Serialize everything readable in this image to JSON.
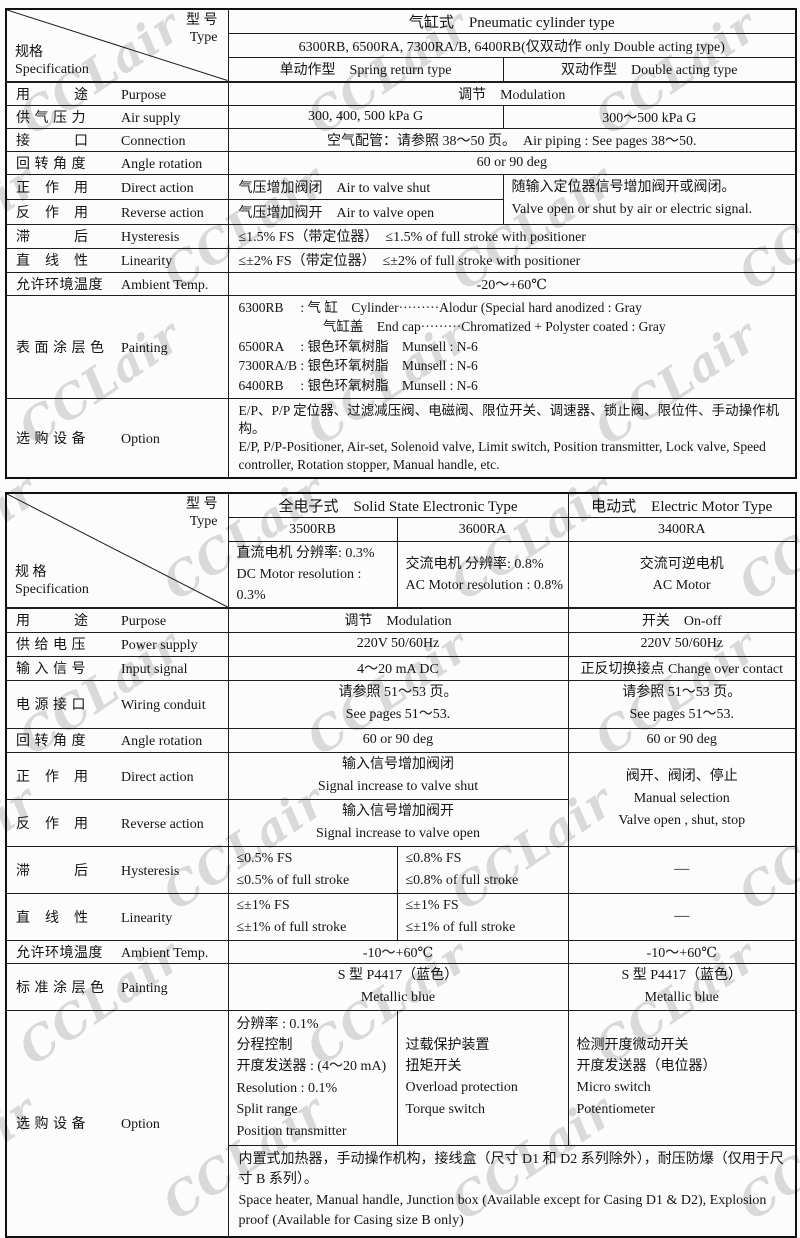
{
  "watermark": {
    "text": "CCLair",
    "color": "#b0b0b0"
  },
  "t1": {
    "corner": {
      "type_zh": "型 号",
      "type_en": "Type",
      "spec_zh": "规格",
      "spec_en": "Specification"
    },
    "header": {
      "family": "气缸式　Pneumatic cylinder type",
      "models": "6300RB, 6500RA, 7300RA/B, 6400RB(仅双动作 only Double acting type)",
      "single": "单动作型　Spring return type",
      "double": "双动作型　Double acting type"
    },
    "labels": {
      "purpose_zh": "用　　　途",
      "purpose_en": "Purpose",
      "air_zh": "供 气 压 力",
      "air_en": "Air supply",
      "conn_zh": "接　　　口",
      "conn_en": "Connection",
      "angle_zh": "回 转 角 度",
      "angle_en": "Angle rotation",
      "direct_zh": "正　作　用",
      "direct_en": "Direct action",
      "reverse_zh": "反　作　用",
      "reverse_en": "Reverse action",
      "hyst_zh": "滞　　　后",
      "hyst_en": "Hysteresis",
      "lin_zh": "直　线　性",
      "lin_en": "Linearity",
      "ambient_zh": "允许环境温度",
      "ambient_en": "Ambient Temp.",
      "paint_zh": "表 面 涂 层 色",
      "paint_en": "Painting",
      "option_zh": "选 购 设 备",
      "option_en": "Option"
    },
    "values": {
      "purpose": "调节　Modulation",
      "air1": "300, 400, 500 kPa G",
      "air2": "300～500 kPa G",
      "conn": "空气配管：请参照 38～50 页。　Air piping : See pages 38～50.",
      "angle": "60 or 90 deg",
      "direct": "气压增加阀闭　Air to valve shut",
      "reverse": "气压增加阀开　Air to valve open",
      "note_l1": "随输入定位器信号增加阀开或阀闭。",
      "note_l2": "Valve open or shut by air or electric signal.",
      "hyst": "≤1.5% FS（带定位器）　≤1.5% of full stroke with positioner",
      "lin": "≤±2% FS（带定位器）　≤±2% of full stroke with positioner",
      "ambient": "-20～+60℃",
      "paint_l1": "6300RB　 : 气 缸　Cylinder·········Alodur (Special hard anodized : Gray",
      "paint_l2": "　　　　　　 气缸盖　End cap·········Chromatized + Polyster coated : Gray",
      "paint_l3": "6500RA　 : 银色环氧树脂　Munsell : N-6",
      "paint_l4": "7300RA/B : 银色环氧树脂　Munsell : N-6",
      "paint_l5": "6400RB　 : 银色环氧树脂　Munsell : N-6",
      "option_zh": "E/P、P/P 定位器、过滤减压阀、电磁阀、限位开关、调速器、锁止阀、限位件、手动操作机构。",
      "option_en": "E/P, P/P-Positioner, Air-set, Solenoid valve, Limit switch, Position transmitter, Lock valve, Speed controller,  Rotation stopper, Manual handle, etc."
    }
  },
  "t2": {
    "corner": {
      "type_zh": "型 号",
      "type_en": "Type",
      "spec_zh": "规 格",
      "spec_en": "Specification"
    },
    "header": {
      "solid": "全电子式　Solid State Electronic Type",
      "electric": "电动式　Electric Motor Type",
      "m1": "3500RB",
      "m2": "3600RA",
      "m3": "3400RA",
      "res1_l1": "直流电机 分辨率: 0.3%",
      "res1_l2": "DC Motor resolution : 0.3%",
      "res2_l1": "交流电机 分辨率: 0.8%",
      "res2_l2": "AC Motor resolution : 0.8%",
      "res3_l1": "交流可逆电机",
      "res3_l2": "AC Motor"
    },
    "labels": {
      "purpose_zh": "用　　　途",
      "purpose_en": "Purpose",
      "power_zh": "供 给 电 压",
      "power_en": "Power supply",
      "input_zh": "输 入 信 号",
      "input_en": "Input signal",
      "wiring_zh": "电 源 接 口",
      "wiring_en": "Wiring conduit",
      "angle_zh": "回 转 角 度",
      "angle_en": "Angle rotation",
      "direct_zh": "正　作　用",
      "direct_en": "Direct action",
      "reverse_zh": "反　作　用",
      "reverse_en": "Reverse action",
      "hyst_zh": "滞　　　后",
      "hyst_en": "Hysteresis",
      "lin_zh": "直　线　性",
      "lin_en": "Linearity",
      "ambient_zh": "允许环境温度",
      "ambient_en": "Ambient Temp.",
      "paint_zh": "标 准 涂 层 色",
      "paint_en": "Painting",
      "option_zh": "选 购 设 备",
      "option_en": "Option"
    },
    "values": {
      "purpose1": "调节　Modulation",
      "purpose2": "开关　On-off",
      "power": "220V 50/60Hz",
      "input1": "4～20 mA DC",
      "input2": "正反切换接点 Change over contact",
      "wiring_l1": "请参照 51～53 页。",
      "wiring_l2": "See pages 51～53.",
      "angle": "60 or 90 deg",
      "direct_l1": "输入信号增加阀闭",
      "direct_l2": "Signal increase to valve shut",
      "reverse_l1": "输入信号增加阀开",
      "reverse_l2": "Signal increase to valve open",
      "manual_l1": "阀开、阀闭、停止",
      "manual_l2": "Manual selection",
      "manual_l3": "Valve open , shut, stop",
      "hyst1_l1": "≤0.5% FS",
      "hyst1_l2": "≤0.5% of full stroke",
      "hyst2_l1": "≤0.8% FS",
      "hyst2_l2": "≤0.8% of full stroke",
      "lin_l1": "≤±1% FS",
      "lin_l2": "≤±1% of full stroke",
      "dash": "—",
      "ambient": "-10～+60℃",
      "paint_l1": "S 型 P4417（蓝色）",
      "paint_l2": "Metallic blue",
      "opt1": [
        "分辨率 : 0.1%",
        "分程控制",
        "开度发送器 : (4～20 mA)",
        "Resolution : 0.1%",
        "Split range",
        "Position transmitter"
      ],
      "opt2": [
        "过载保护装置",
        "扭矩开关",
        "Overload protection",
        "Torque switch"
      ],
      "opt3": [
        "检测开度微动开关",
        "开度发送器（电位器）",
        "Micro switch",
        "Potentiometer"
      ],
      "opt_bottom_zh": "内置式加热器，手动操作机构，接线盒（尺寸 D1 和 D2 系列除外），耐压防爆（仅用于尺寸 B 系列）。",
      "opt_bottom_en": "Space heater, Manual handle, Junction box (Available except for Casing D1 & D2), Explosion proof (Available for Casing size B only)"
    }
  }
}
